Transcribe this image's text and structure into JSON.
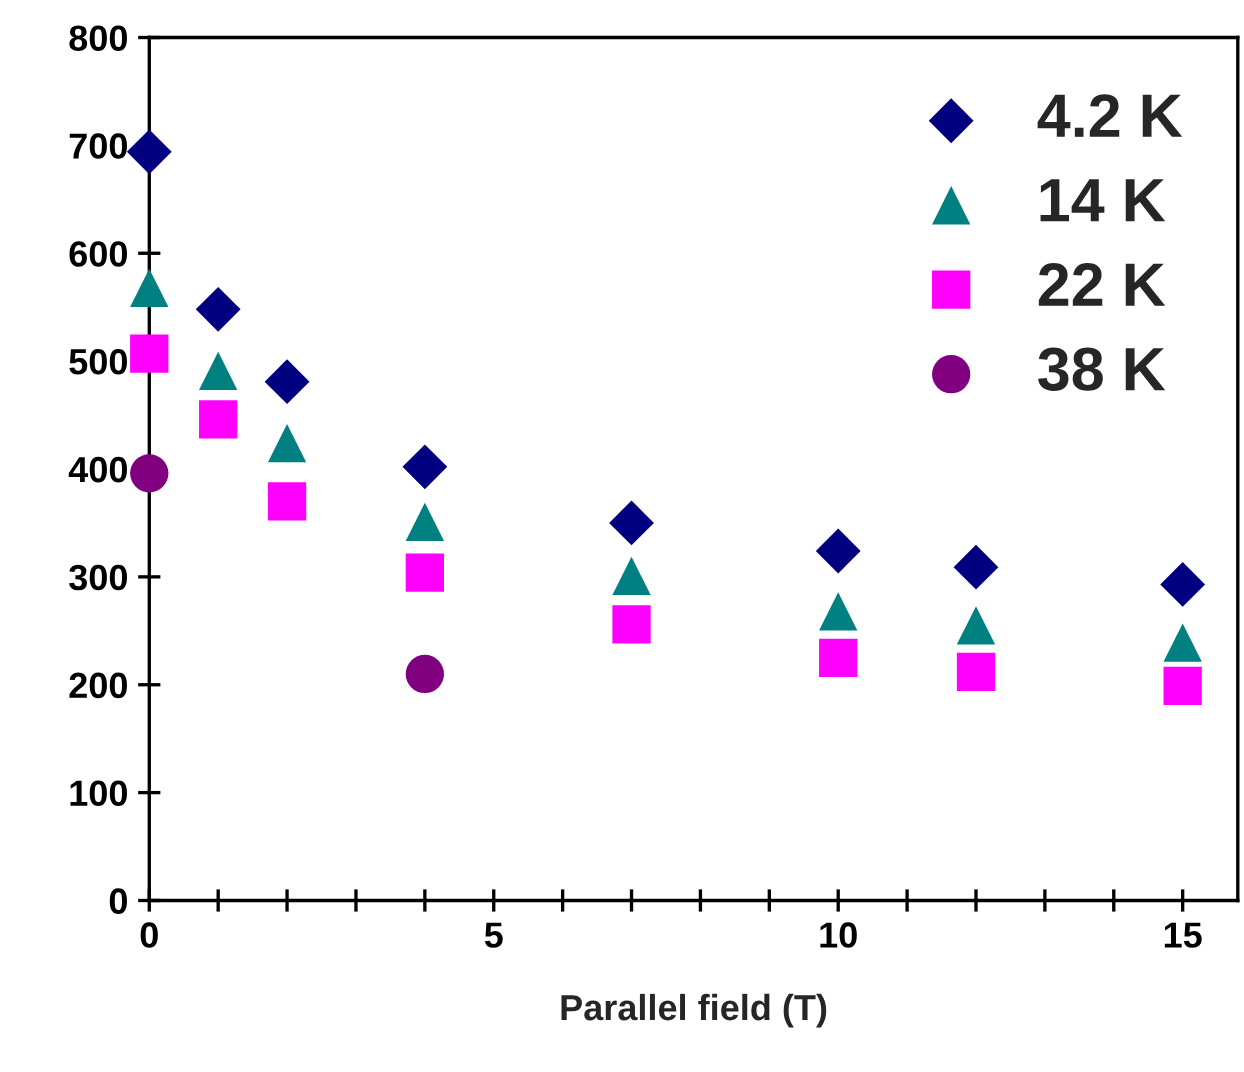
{
  "chart_data": {
    "type": "scatter",
    "xlabel": "Parallel field (T)",
    "xlim": [
      0,
      15.8
    ],
    "ylim": [
      0,
      800
    ],
    "xticks": [
      0,
      {
        "value": 1,
        "label": null
      },
      {
        "value": 2,
        "label": null
      },
      {
        "value": 3,
        "label": null
      },
      {
        "value": 4,
        "label": null
      },
      5,
      {
        "value": 6,
        "label": null
      },
      {
        "value": 7,
        "label": null
      },
      {
        "value": 8,
        "label": null
      },
      {
        "value": 9,
        "label": null
      },
      10,
      {
        "value": 11,
        "label": null
      },
      {
        "value": 12,
        "label": null
      },
      {
        "value": 13,
        "label": null
      },
      {
        "value": 14,
        "label": null
      },
      15
    ],
    "yticks": [
      0,
      100,
      200,
      300,
      400,
      500,
      600,
      700,
      800
    ],
    "grid": false,
    "legend": "top right",
    "series": [
      {
        "name": "4.2 K",
        "color": "#000080",
        "marker": "diamond",
        "x": [
          0,
          1,
          2,
          4,
          7,
          10,
          12,
          15
        ],
        "values": [
          694,
          548,
          481,
          402,
          350,
          324,
          309,
          293
        ]
      },
      {
        "name": "14 K",
        "color": "#008080",
        "marker": "triangle",
        "x": [
          0,
          1,
          2,
          4,
          7,
          10,
          12,
          15
        ],
        "values": [
          568,
          491,
          424,
          351,
          301,
          268,
          255,
          239
        ]
      },
      {
        "name": "22 K",
        "color": "#ff00ff",
        "marker": "square",
        "x": [
          0,
          1,
          2,
          4,
          7,
          10,
          12,
          15
        ],
        "values": [
          507,
          446,
          370,
          304,
          256,
          225,
          212,
          199
        ]
      },
      {
        "name": "38 K",
        "color": "#800080",
        "marker": "circle",
        "x": [
          0,
          4
        ],
        "values": [
          396,
          210
        ]
      }
    ]
  }
}
